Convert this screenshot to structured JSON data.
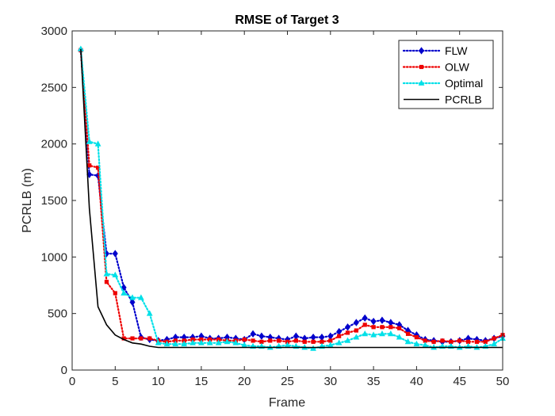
{
  "chart_data": {
    "type": "line",
    "title": "RMSE of Target 3",
    "xlabel": "Frame",
    "ylabel": "PCRLB (m)",
    "xlim": [
      0,
      50
    ],
    "ylim": [
      0,
      3000
    ],
    "xticks": [
      "0",
      "5",
      "10",
      "15",
      "20",
      "25",
      "30",
      "35",
      "40",
      "45",
      "50"
    ],
    "yticks": [
      "0",
      "500",
      "1000",
      "1500",
      "2000",
      "2500",
      "3000"
    ],
    "grid": false,
    "legend_position": "top-right",
    "x": [
      1,
      2,
      3,
      4,
      5,
      6,
      7,
      8,
      9,
      10,
      11,
      12,
      13,
      14,
      15,
      16,
      17,
      18,
      19,
      20,
      21,
      22,
      23,
      24,
      25,
      26,
      27,
      28,
      29,
      30,
      31,
      32,
      33,
      34,
      35,
      36,
      37,
      38,
      39,
      40,
      41,
      42,
      43,
      44,
      45,
      46,
      47,
      48,
      49,
      50
    ],
    "series": [
      {
        "name": "FLW",
        "color": "#0000cc",
        "style": "dotted",
        "marker": "diamond",
        "values": [
          2830,
          1730,
          1720,
          1030,
          1030,
          730,
          600,
          290,
          270,
          260,
          270,
          290,
          290,
          290,
          300,
          280,
          280,
          290,
          280,
          270,
          320,
          300,
          290,
          280,
          270,
          300,
          280,
          290,
          290,
          300,
          340,
          380,
          420,
          460,
          430,
          440,
          420,
          400,
          350,
          310,
          270,
          260,
          250,
          250,
          260,
          280,
          270,
          260,
          280,
          300
        ]
      },
      {
        "name": "OLW",
        "color": "#ee0000",
        "style": "dotted",
        "marker": "square",
        "values": [
          2830,
          1810,
          1790,
          780,
          680,
          280,
          280,
          280,
          280,
          260,
          250,
          260,
          260,
          270,
          270,
          270,
          270,
          260,
          260,
          270,
          260,
          250,
          260,
          260,
          250,
          260,
          250,
          250,
          250,
          260,
          300,
          330,
          350,
          400,
          380,
          380,
          380,
          370,
          320,
          290,
          260,
          250,
          260,
          250,
          260,
          250,
          250,
          250,
          280,
          310
        ]
      },
      {
        "name": "Optimal",
        "color": "#00e0e8",
        "style": "dotted",
        "marker": "triangle",
        "values": [
          2840,
          2020,
          2000,
          850,
          840,
          680,
          640,
          640,
          500,
          240,
          230,
          230,
          230,
          240,
          240,
          240,
          240,
          250,
          240,
          220,
          210,
          210,
          200,
          210,
          220,
          210,
          200,
          190,
          210,
          220,
          240,
          260,
          290,
          320,
          310,
          320,
          320,
          290,
          250,
          230,
          220,
          200,
          210,
          210,
          200,
          210,
          200,
          210,
          230,
          280
        ]
      },
      {
        "name": "PCRLB",
        "color": "#000000",
        "style": "solid",
        "marker": "none",
        "values": [
          2840,
          1430,
          560,
          400,
          310,
          270,
          240,
          230,
          210,
          200,
          200,
          200,
          200,
          200,
          200,
          200,
          200,
          200,
          200,
          200,
          200,
          200,
          200,
          200,
          200,
          200,
          200,
          200,
          200,
          200,
          200,
          200,
          200,
          200,
          200,
          200,
          200,
          200,
          200,
          200,
          200,
          200,
          200,
          200,
          200,
          200,
          200,
          200,
          200,
          200
        ]
      }
    ]
  }
}
